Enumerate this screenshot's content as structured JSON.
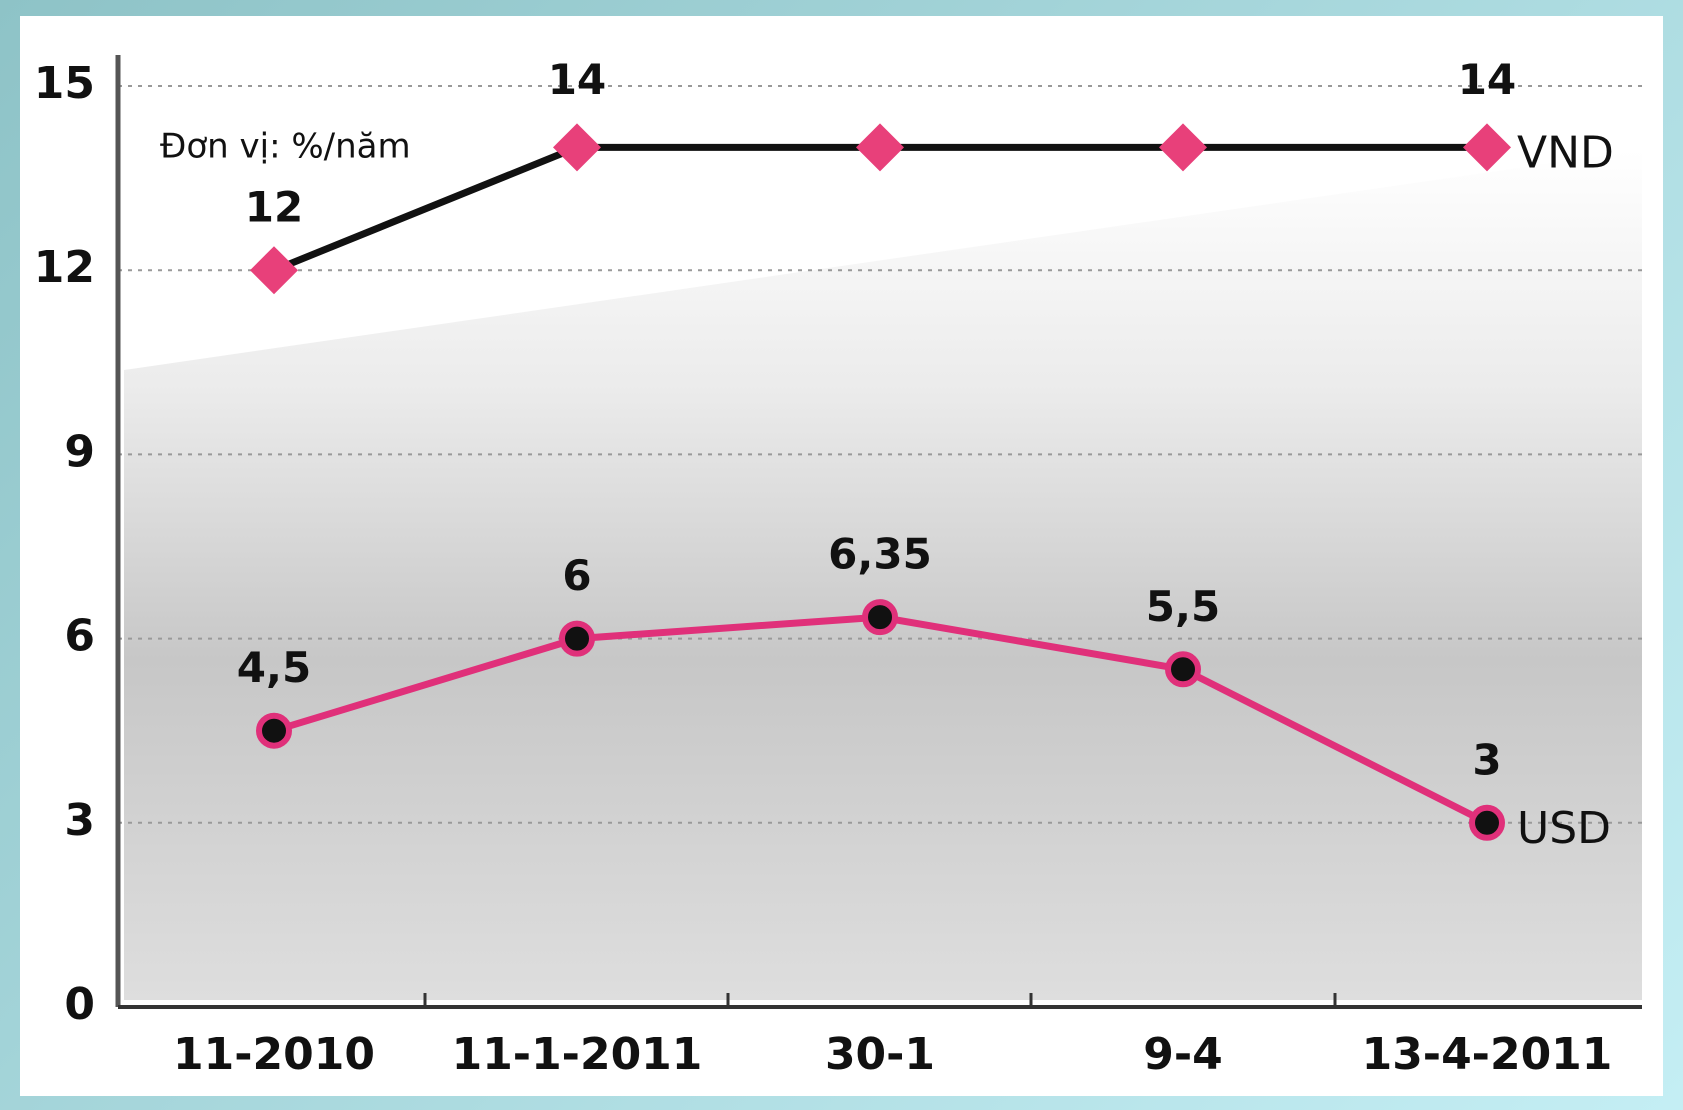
{
  "chart_data": {
    "type": "line",
    "annotation": "Đơn vị: %/năm",
    "categories": [
      "11-2010",
      "11-1-2011",
      "30-1",
      "9-4",
      "13-4-2011"
    ],
    "series": [
      {
        "name": "VND",
        "color": "#111111",
        "marker": "diamond",
        "marker_color": "#e8407a",
        "values": [
          12,
          14,
          14,
          14,
          14
        ],
        "value_labels": [
          "12",
          "14",
          null,
          null,
          "14"
        ]
      },
      {
        "name": "USD",
        "color": "#e0307a",
        "marker": "circle",
        "marker_color": "#111111",
        "values": [
          4.5,
          6,
          6.35,
          5.5,
          3
        ],
        "value_labels": [
          "4,5",
          "6",
          "6,35",
          "5,5",
          "3"
        ]
      }
    ],
    "ylim": [
      0,
      15
    ],
    "yticks": [
      0,
      3,
      6,
      9,
      12,
      15
    ],
    "grid": true
  }
}
